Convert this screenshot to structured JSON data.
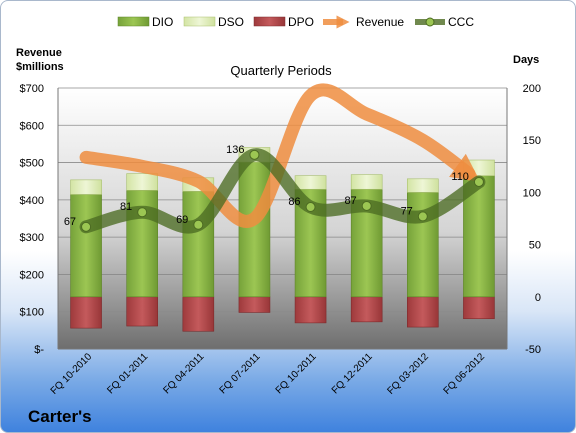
{
  "company": "Carter's",
  "chart_data": {
    "type": "bar",
    "title": "Quarterly Periods",
    "left_axis_label_line1": "Revenue",
    "left_axis_label_line2": "$millions",
    "right_axis_label": "Days",
    "categories": [
      "FQ 10-2010",
      "FQ 01-2011",
      "FQ 04-2011",
      "FQ 07-2011",
      "FQ 10-2011",
      "FQ 12-2011",
      "FQ 03-2012",
      "FQ 06-2012"
    ],
    "left_ticks": [
      "$700",
      "$600",
      "$500",
      "$400",
      "$300",
      "$200",
      "$100",
      "$-"
    ],
    "right_ticks": [
      "200",
      "150",
      "100",
      "50",
      "0",
      "-50"
    ],
    "ylim_left": [
      0,
      700
    ],
    "ylim_right": [
      -50,
      200
    ],
    "grid": true,
    "legend_position": "top",
    "series": [
      {
        "name": "DIO",
        "axis": "right",
        "kind": "bar",
        "values": [
          98,
          102,
          101,
          129,
          103,
          103,
          100,
          116
        ],
        "color": "#8db53f"
      },
      {
        "name": "DSO",
        "axis": "right",
        "kind": "bar",
        "values": [
          14,
          16,
          13,
          14,
          13,
          14,
          13,
          15
        ],
        "color": "#dbe9b6"
      },
      {
        "name": "DPO",
        "axis": "right",
        "kind": "bar",
        "values": [
          -30,
          -28,
          -33,
          -15,
          -25,
          -24,
          -29,
          -21
        ],
        "color": "#b64a4c"
      },
      {
        "name": "Revenue",
        "axis": "left",
        "kind": "line",
        "values": [
          514,
          490,
          450,
          350,
          680,
          630,
          560,
          470
        ],
        "color": "#ef8d3f"
      },
      {
        "name": "CCC",
        "axis": "right",
        "kind": "line",
        "values": [
          67,
          81,
          69,
          136,
          86,
          87,
          77,
          110
        ],
        "labels": [
          "67",
          "81",
          "69",
          "136",
          "86",
          "87",
          "77",
          "110"
        ],
        "color": "#4c6b22"
      }
    ]
  }
}
